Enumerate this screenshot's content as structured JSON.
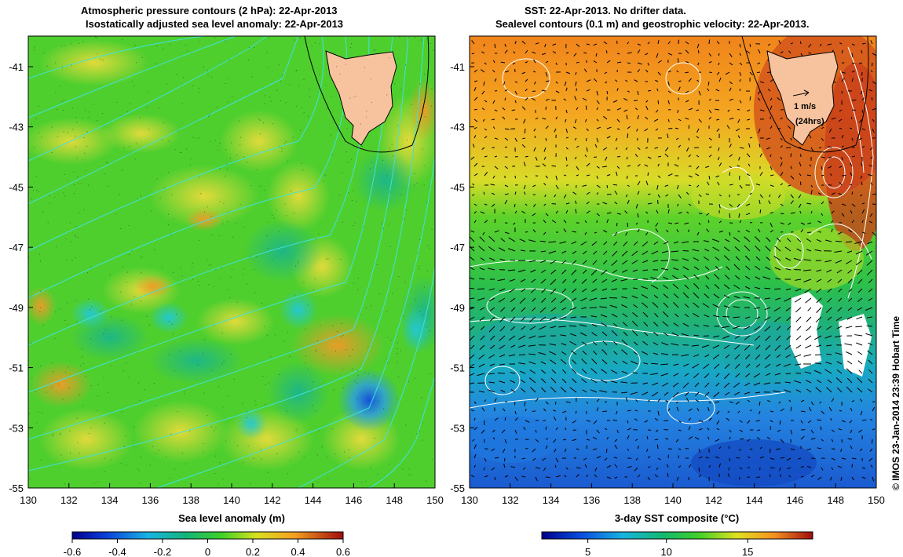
{
  "left_panel": {
    "title_line1": "Atmospheric pressure contours (2 hPa): 22-Apr-2013",
    "title_line2": "Isostatically adjusted sea level anomaly: 22-Apr-2013",
    "x_ticks": [
      "130",
      "132",
      "134",
      "136",
      "138",
      "140",
      "142",
      "144",
      "146",
      "148",
      "150"
    ],
    "y_ticks": [
      "-41",
      "-43",
      "-45",
      "-47",
      "-49",
      "-51",
      "-53",
      "-55"
    ],
    "colorbar_label": "Sea level anomaly (m)",
    "colorbar_ticks": [
      "-0.6",
      "-0.4",
      "-0.2",
      "0",
      "0.2",
      "0.4",
      "0.6"
    ]
  },
  "right_panel": {
    "title_line1": "SST: 22-Apr-2013. No drifter data.",
    "title_line2": "Sealevel contours (0.1 m) and geostrophic velocity: 22-Apr-2013.",
    "x_ticks": [
      "130",
      "132",
      "134",
      "136",
      "138",
      "140",
      "142",
      "144",
      "146",
      "148",
      "150"
    ],
    "y_ticks": [
      "-41",
      "-43",
      "-45",
      "-47",
      "-49",
      "-51",
      "-53",
      "-55"
    ],
    "colorbar_label": "3-day SST composite (°C)",
    "colorbar_ticks": [
      "5",
      "10",
      "15"
    ],
    "velocity_scale_label": "1 m/s",
    "velocity_scale_note": "(24hrs)"
  },
  "credit": "© IMOS 23-Jan-2014 23:39 Hobart Time",
  "colors": {
    "land": "#f7c39e",
    "pressure_contour": "#40e0e0",
    "sealevel_contour": "#ffffff"
  }
}
